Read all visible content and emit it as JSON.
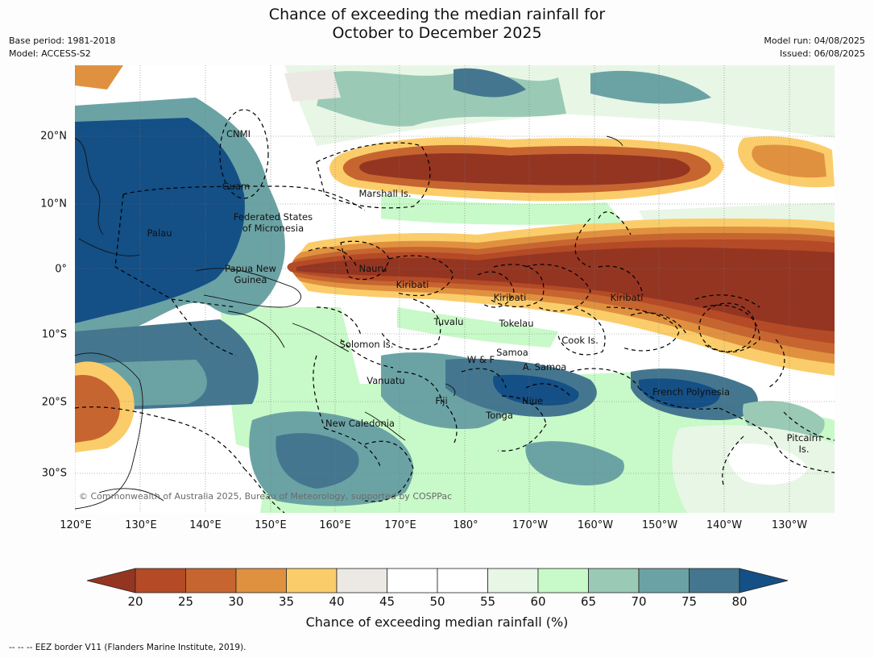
{
  "title": {
    "line1": "Chance of exceeding the median rainfall for",
    "line2": "October to December 2025"
  },
  "meta_left": {
    "base_period": "Base period: 1981-2018",
    "model": "Model: ACCESS-S2"
  },
  "meta_right": {
    "model_run": "Model run: 04/08/2025",
    "issued": "Issued: 06/08/2025"
  },
  "copyright": "© Commonwealth of Australia 2025, Bureau of Meteorology, supported by COSPPac",
  "lat_ticks": [
    "20°N",
    "10°N",
    "0°",
    "10°S",
    "20°S",
    "30°S"
  ],
  "lon_ticks": [
    "120°E",
    "130°E",
    "140°E",
    "150°E",
    "160°E",
    "170°E",
    "180°",
    "170°W",
    "160°W",
    "150°W",
    "140°W",
    "130°W"
  ],
  "regions": {
    "cnmi": "CNMI",
    "guam": "Guam",
    "marshall": "Marshall Is.",
    "fsm_line1": "Federated States",
    "fsm_line2": "of Micronesia",
    "palau": "Palau",
    "png_line1": "Papua New",
    "png_line2": "Guinea",
    "nauru": "Nauru",
    "kiribati_west": "Kiribati",
    "kiribati_central": "Kiribati",
    "kiribati_east": "Kiribati",
    "tuvalu": "Tuvalu",
    "tokelau": "Tokelau",
    "cook": "Cook Is.",
    "solomon": "Solomon Is.",
    "wallis_futuna": "W & F",
    "samoa": "Samoa",
    "american_samoa": "A. Samoa",
    "vanuatu": "Vanuatu",
    "fiji": "Fiji",
    "niue": "Niue",
    "tonga": "Tonga",
    "french_polynesia": "French Polynesia",
    "new_caledonia": "New Caledonia",
    "pitcairn_line1": "Pitcairn",
    "pitcairn_line2": "Is."
  },
  "legend": {
    "ticks": [
      "20",
      "25",
      "30",
      "35",
      "40",
      "45",
      "50",
      "55",
      "60",
      "65",
      "70",
      "75",
      "80"
    ],
    "colors": {
      "below_20": "#943522",
      "c20_25": "#b44a26",
      "c25_30": "#c76530",
      "c30_35": "#e0913f",
      "c35_40": "#fbcd6a",
      "c40_45": "#ece9e4",
      "c45_50": "#ffffff",
      "c50_55": "#ffffff",
      "c55_60": "#e8f6e6",
      "c60_65": "#c8f9c8",
      "c65_70": "#9acab5",
      "c70_75": "#6ba3a5",
      "c75_80": "#44778f",
      "above_80": "#144f86"
    },
    "label": "Chance of exceeding median rainfall (%)"
  },
  "footnote": "--  --  -- EEZ border V11 (Flanders Marine Institute, 2019)."
}
